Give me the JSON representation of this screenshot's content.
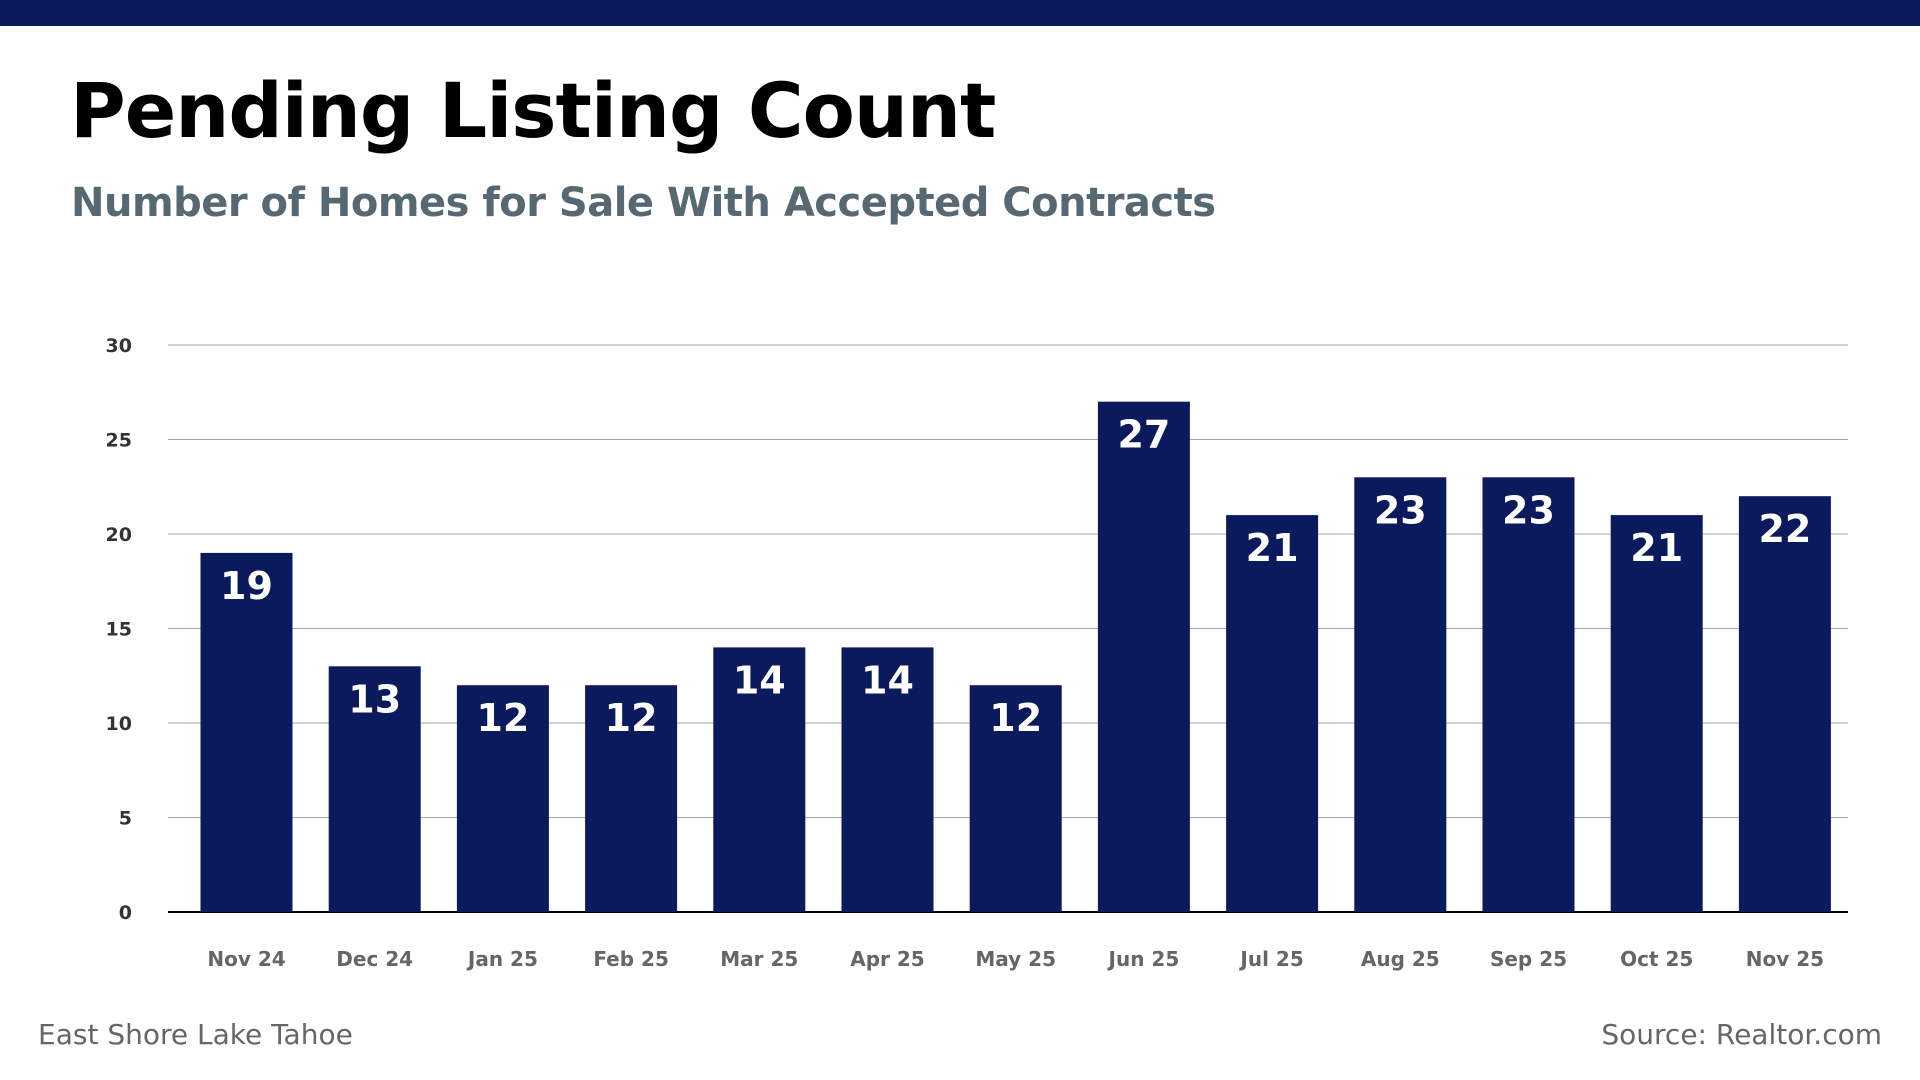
{
  "colors": {
    "top_bar": "#0A1A5C",
    "bar": "#0A1A5C",
    "subtitle": "#566872",
    "grid": "#A6A6A6",
    "axis": "#000000"
  },
  "footer": {
    "left": "East Shore Lake Tahoe",
    "right": "Source: Realtor.com"
  },
  "chart_data": {
    "type": "bar",
    "title": "Pending Listing Count",
    "subtitle": "Number of Homes for Sale With Accepted Contracts",
    "categories": [
      "Nov 24",
      "Dec 24",
      "Jan 25",
      "Feb 25",
      "Mar 25",
      "Apr 25",
      "May 25",
      "Jun 25",
      "Jul 25",
      "Aug 25",
      "Sep 25",
      "Oct 25",
      "Nov 25"
    ],
    "values": [
      19,
      13,
      12,
      12,
      14,
      14,
      12,
      27,
      21,
      23,
      23,
      21,
      22
    ],
    "ylim": [
      0,
      30
    ],
    "yticks": [
      0,
      5,
      10,
      15,
      20,
      25,
      30
    ],
    "grid": true,
    "data_labels": true,
    "xlabel": "",
    "ylabel": ""
  }
}
